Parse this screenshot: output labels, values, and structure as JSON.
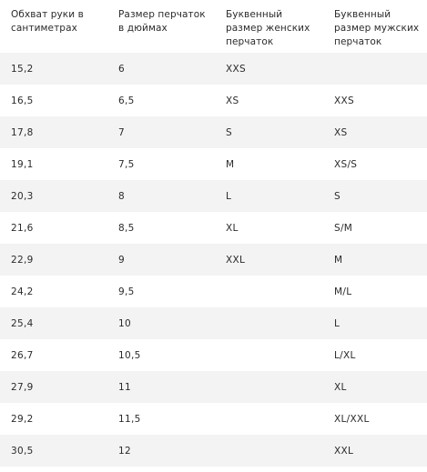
{
  "table": {
    "headers": [
      "Обхват руки в сантиметрах",
      "Размер перчаток в дюймах",
      "Буквенный размер женских перчаток",
      "Буквенный размер мужских перчаток"
    ],
    "rows": [
      [
        "15,2",
        "6",
        "XXS",
        ""
      ],
      [
        "16,5",
        "6,5",
        "XS",
        "XXS"
      ],
      [
        "17,8",
        "7",
        "S",
        "XS"
      ],
      [
        "19,1",
        "7,5",
        "M",
        "XS/S"
      ],
      [
        "20,3",
        "8",
        "L",
        "S"
      ],
      [
        "21,6",
        "8,5",
        "XL",
        "S/M"
      ],
      [
        "22,9",
        "9",
        "XXL",
        "M"
      ],
      [
        "24,2",
        "9,5",
        "",
        "M/L"
      ],
      [
        "25,4",
        "10",
        "",
        "L"
      ],
      [
        "26,7",
        "10,5",
        "",
        "L/XL"
      ],
      [
        "27,9",
        "11",
        "",
        "XL"
      ],
      [
        "29,2",
        "11,5",
        "",
        "XL/XXL"
      ],
      [
        "30,5",
        "12",
        "",
        "XXL"
      ]
    ]
  },
  "colors": {
    "text": "#2b2b2b",
    "stripe": "#f3f3f3",
    "background": "#ffffff"
  }
}
